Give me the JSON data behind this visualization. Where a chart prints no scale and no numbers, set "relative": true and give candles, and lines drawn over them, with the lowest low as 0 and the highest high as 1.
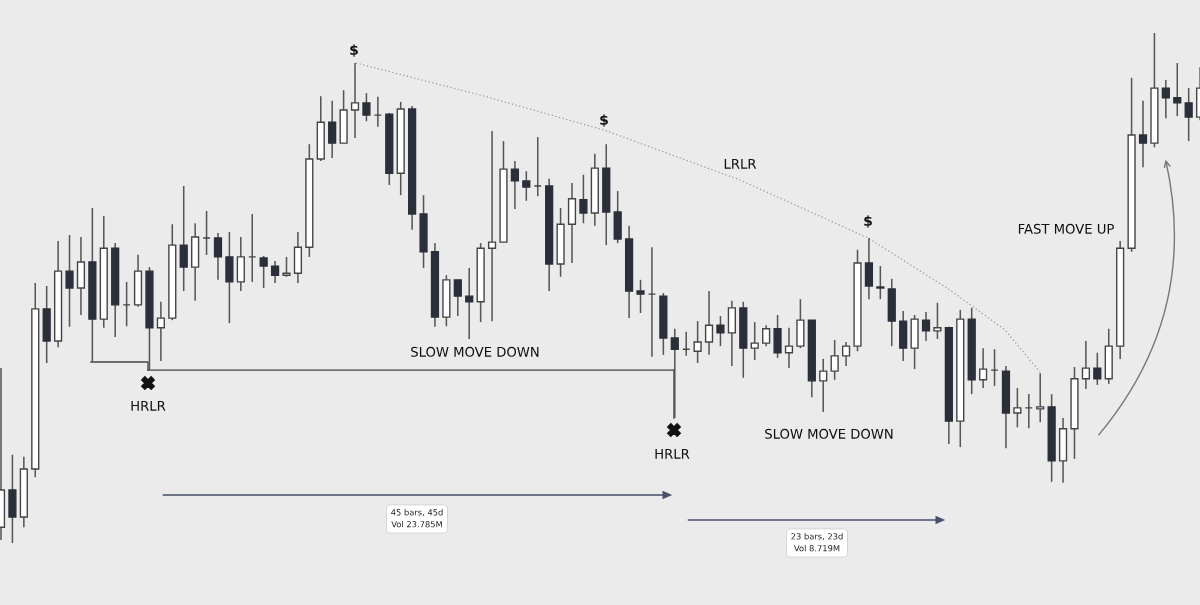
{
  "chart_data": {
    "type": "candlestick",
    "relative": true,
    "categories": [
      null,
      null,
      null,
      null,
      null,
      null,
      null,
      null,
      null,
      null,
      null,
      null,
      null,
      null,
      null,
      null,
      null,
      null,
      null,
      null,
      null,
      null,
      null,
      null,
      null,
      null,
      null,
      null,
      null,
      null,
      null,
      null,
      null,
      null,
      null,
      null,
      null,
      null,
      null,
      null,
      null,
      null,
      null,
      null,
      null,
      null,
      null,
      null,
      null,
      null,
      null,
      null,
      null,
      null,
      null,
      null,
      null,
      null,
      null,
      null,
      null,
      null,
      null,
      null,
      null,
      null,
      null,
      null,
      null,
      null,
      null,
      null,
      null,
      null,
      null,
      null,
      null,
      null,
      null,
      null,
      null,
      null,
      null,
      null,
      null,
      null,
      null,
      null,
      null,
      null,
      null,
      null,
      null,
      null,
      null,
      null,
      null,
      null,
      null,
      null,
      null,
      null,
      null,
      null,
      null,
      null
    ],
    "ohlc": [
      [
        0.031,
        0.343,
        0.006,
        0.104
      ],
      [
        0.104,
        0.173,
        0.0,
        0.051
      ],
      [
        0.051,
        0.169,
        0.031,
        0.145
      ],
      [
        0.145,
        0.51,
        0.129,
        0.459
      ],
      [
        0.459,
        0.504,
        0.353,
        0.396
      ],
      [
        0.396,
        0.592,
        0.384,
        0.533
      ],
      [
        0.533,
        0.604,
        0.424,
        0.5
      ],
      [
        0.5,
        0.6,
        0.447,
        0.551
      ],
      [
        0.551,
        0.657,
        0.355,
        0.439
      ],
      [
        0.439,
        0.641,
        0.422,
        0.578
      ],
      [
        0.578,
        0.588,
        0.404,
        0.467
      ],
      [
        0.467,
        0.512,
        0.425,
        0.467
      ],
      [
        0.467,
        0.565,
        0.463,
        0.533
      ],
      [
        0.533,
        0.541,
        0.339,
        0.422
      ],
      [
        0.422,
        0.473,
        0.357,
        0.441
      ],
      [
        0.441,
        0.625,
        0.437,
        0.584
      ],
      [
        0.584,
        0.7,
        0.494,
        0.541
      ],
      [
        0.541,
        0.627,
        0.475,
        0.6
      ],
      [
        0.598,
        0.651,
        0.565,
        0.598
      ],
      [
        0.598,
        0.608,
        0.516,
        0.561
      ],
      [
        0.561,
        0.61,
        0.431,
        0.512
      ],
      [
        0.512,
        0.6,
        0.494,
        0.561
      ],
      [
        0.561,
        0.645,
        0.512,
        0.561
      ],
      [
        0.559,
        0.563,
        0.5,
        0.543
      ],
      [
        0.543,
        0.553,
        0.51,
        0.525
      ],
      [
        0.525,
        0.561,
        0.522,
        0.529
      ],
      [
        0.529,
        0.61,
        0.51,
        0.58
      ],
      [
        0.58,
        0.782,
        0.561,
        0.753
      ],
      [
        0.753,
        0.876,
        0.749,
        0.825
      ],
      [
        0.825,
        0.867,
        0.755,
        0.784
      ],
      [
        0.784,
        0.888,
        0.784,
        0.849
      ],
      [
        0.849,
        0.941,
        0.794,
        0.863
      ],
      [
        0.863,
        0.882,
        0.827,
        0.839
      ],
      [
        0.839,
        0.875,
        0.816,
        0.839
      ],
      [
        0.841,
        0.843,
        0.702,
        0.725
      ],
      [
        0.725,
        0.865,
        0.682,
        0.851
      ],
      [
        0.851,
        0.857,
        0.614,
        0.645
      ],
      [
        0.645,
        0.682,
        0.539,
        0.571
      ],
      [
        0.571,
        0.588,
        0.424,
        0.443
      ],
      [
        0.443,
        0.525,
        0.425,
        0.516
      ],
      [
        0.516,
        0.516,
        0.445,
        0.484
      ],
      [
        0.484,
        0.539,
        0.4,
        0.473
      ],
      [
        0.473,
        0.588,
        0.433,
        0.578
      ],
      [
        0.578,
        0.808,
        0.435,
        0.59
      ],
      [
        0.59,
        0.788,
        0.59,
        0.733
      ],
      [
        0.733,
        0.749,
        0.655,
        0.71
      ],
      [
        0.71,
        0.729,
        0.671,
        0.698
      ],
      [
        0.7,
        0.796,
        0.68,
        0.7
      ],
      [
        0.7,
        0.714,
        0.494,
        0.547
      ],
      [
        0.547,
        0.657,
        0.522,
        0.625
      ],
      [
        0.625,
        0.706,
        0.549,
        0.675
      ],
      [
        0.673,
        0.722,
        0.627,
        0.647
      ],
      [
        0.647,
        0.763,
        0.622,
        0.735
      ],
      [
        0.735,
        0.782,
        0.584,
        0.649
      ],
      [
        0.649,
        0.69,
        0.588,
        0.596
      ],
      [
        0.596,
        0.622,
        0.441,
        0.494
      ],
      [
        0.494,
        0.516,
        0.451,
        0.488
      ],
      [
        0.488,
        0.58,
        0.365,
        0.488
      ],
      [
        0.484,
        0.49,
        0.369,
        0.402
      ],
      [
        0.402,
        0.42,
        0.245,
        0.38
      ],
      [
        0.38,
        0.414,
        0.367,
        0.38
      ],
      [
        0.376,
        0.435,
        0.353,
        0.394
      ],
      [
        0.394,
        0.494,
        0.369,
        0.427
      ],
      [
        0.427,
        0.445,
        0.386,
        0.412
      ],
      [
        0.412,
        0.475,
        0.347,
        0.461
      ],
      [
        0.461,
        0.473,
        0.324,
        0.382
      ],
      [
        0.382,
        0.433,
        0.359,
        0.392
      ],
      [
        0.392,
        0.427,
        0.386,
        0.42
      ],
      [
        0.42,
        0.447,
        0.363,
        0.373
      ],
      [
        0.373,
        0.422,
        0.343,
        0.386
      ],
      [
        0.386,
        0.478,
        0.382,
        0.437
      ],
      [
        0.437,
        0.437,
        0.286,
        0.318
      ],
      [
        0.318,
        0.361,
        0.257,
        0.337
      ],
      [
        0.337,
        0.398,
        0.32,
        0.367
      ],
      [
        0.367,
        0.394,
        0.347,
        0.386
      ],
      [
        0.386,
        0.575,
        0.376,
        0.549
      ],
      [
        0.549,
        0.598,
        0.478,
        0.504
      ],
      [
        0.502,
        0.543,
        0.478,
        0.5
      ],
      [
        0.498,
        0.518,
        0.386,
        0.435
      ],
      [
        0.435,
        0.455,
        0.357,
        0.382
      ],
      [
        0.382,
        0.447,
        0.341,
        0.439
      ],
      [
        0.437,
        0.453,
        0.396,
        0.416
      ],
      [
        0.416,
        0.471,
        0.4,
        0.422
      ],
      [
        0.422,
        0.424,
        0.194,
        0.239
      ],
      [
        0.239,
        0.457,
        0.188,
        0.439
      ],
      [
        0.439,
        0.461,
        0.292,
        0.32
      ],
      [
        0.32,
        0.382,
        0.304,
        0.341
      ],
      [
        0.339,
        0.38,
        0.308,
        0.339
      ],
      [
        0.337,
        0.347,
        0.186,
        0.255
      ],
      [
        0.255,
        0.304,
        0.227,
        0.265
      ],
      [
        0.265,
        0.292,
        0.225,
        0.265
      ],
      [
        0.263,
        0.333,
        0.237,
        0.267
      ],
      [
        0.267,
        0.292,
        0.12,
        0.161
      ],
      [
        0.161,
        0.245,
        0.118,
        0.224
      ],
      [
        0.224,
        0.345,
        0.165,
        0.322
      ],
      [
        0.322,
        0.396,
        0.302,
        0.343
      ],
      [
        0.343,
        0.373,
        0.31,
        0.322
      ],
      [
        0.322,
        0.42,
        0.312,
        0.386
      ],
      [
        0.386,
        0.592,
        0.361,
        0.578
      ],
      [
        0.578,
        0.912,
        0.571,
        0.8
      ],
      [
        0.8,
        0.867,
        0.737,
        0.784
      ],
      [
        0.784,
        1.0,
        0.776,
        0.892
      ],
      [
        0.892,
        0.908,
        0.833,
        0.873
      ],
      [
        0.873,
        0.941,
        0.837,
        0.863
      ],
      [
        0.863,
        0.892,
        0.788,
        0.835
      ],
      [
        0.835,
        0.933,
        0.829,
        0.892
      ]
    ],
    "ref_lines": [
      {
        "axis": "y",
        "value": 0.339,
        "color": "#444444",
        "line_style": "solid"
      }
    ],
    "annotations": [
      "$",
      "$",
      "$",
      "LRLR",
      "HRLR",
      "HRLR",
      "SLOW MOVE DOWN",
      "SLOW MOVE DOWN",
      "FAST MOVE UP",
      "45 bars, 45d\nVol 23.785M",
      "23 bars, 23d\nVol 8.719M"
    ]
  }
}
